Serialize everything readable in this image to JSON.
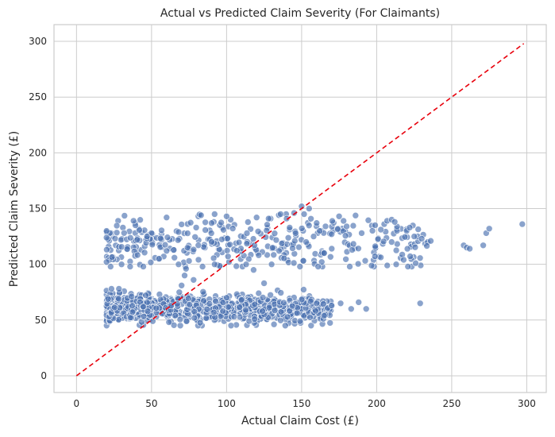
{
  "chart_data": {
    "type": "scatter",
    "title": "Actual vs Predicted Claim Severity (For Claimants)",
    "xlabel": "Actual Claim Cost (£)",
    "ylabel": "Predicted Claim Severity (£)",
    "xlim": [
      -15,
      313
    ],
    "ylim": [
      -15,
      315
    ],
    "xticks": [
      0,
      50,
      100,
      150,
      200,
      250,
      300
    ],
    "yticks": [
      0,
      50,
      100,
      150,
      200,
      250,
      300
    ],
    "grid": true,
    "legend": "none",
    "point_color": "#4c72b0",
    "reference_line": {
      "x": [
        0,
        298
      ],
      "y": [
        0,
        298
      ],
      "style": "dashed",
      "color": "#e8000b"
    },
    "clusters": [
      {
        "name_note": "",
        "x_range": [
          20,
          235
        ],
        "y_center": 60,
        "y_spread": 6,
        "count": 900,
        "x_mode": "dense_low"
      },
      {
        "name_note": "",
        "x_range": [
          20,
          235
        ],
        "y_center": 118,
        "y_spread": 12,
        "count": 340,
        "x_mode": "uniform"
      }
    ],
    "points": [
      [
        20,
        130
      ],
      [
        20,
        102
      ],
      [
        20,
        124
      ],
      [
        30,
        100
      ],
      [
        38,
        139
      ],
      [
        47,
        125
      ],
      [
        60,
        142
      ],
      [
        68,
        129
      ],
      [
        83,
        144
      ],
      [
        90,
        137
      ],
      [
        92,
        145
      ],
      [
        100,
        143
      ],
      [
        120,
        142
      ],
      [
        128,
        141
      ],
      [
        140,
        141
      ],
      [
        145,
        146
      ],
      [
        150,
        152
      ],
      [
        155,
        150
      ],
      [
        160,
        137
      ],
      [
        170,
        127
      ],
      [
        175,
        143
      ],
      [
        180,
        134
      ],
      [
        190,
        128
      ],
      [
        199,
        135
      ],
      [
        205,
        136
      ],
      [
        207,
        139
      ],
      [
        210,
        140
      ],
      [
        212,
        138
      ],
      [
        220,
        130
      ],
      [
        222,
        133
      ],
      [
        225,
        125
      ],
      [
        230,
        123
      ],
      [
        236,
        121
      ],
      [
        210,
        120
      ],
      [
        213,
        100
      ],
      [
        218,
        104
      ],
      [
        226,
        101
      ],
      [
        258,
        117
      ],
      [
        260,
        115
      ],
      [
        262,
        114
      ],
      [
        271,
        117
      ],
      [
        273,
        128
      ],
      [
        275,
        132
      ],
      [
        297,
        136
      ],
      [
        229,
        65
      ],
      [
        188,
        66
      ],
      [
        193,
        60
      ],
      [
        149,
        49
      ],
      [
        156,
        67
      ],
      [
        160,
        65
      ],
      [
        170,
        63
      ],
      [
        176,
        65
      ],
      [
        183,
        60
      ],
      [
        165,
        54
      ],
      [
        73,
        96
      ],
      [
        75,
        103
      ],
      [
        72,
        90
      ],
      [
        60,
        112
      ],
      [
        55,
        105
      ],
      [
        68,
        100
      ],
      [
        100,
        70
      ],
      [
        110,
        68
      ],
      [
        118,
        95
      ],
      [
        125,
        83
      ],
      [
        113,
        100
      ],
      [
        92,
        100
      ],
      [
        84,
        98
      ],
      [
        78,
        86
      ],
      [
        70,
        81
      ],
      [
        146,
        128
      ],
      [
        142,
        133
      ],
      [
        135,
        112
      ],
      [
        130,
        100
      ],
      [
        153,
        120
      ],
      [
        158,
        125
      ],
      [
        162,
        130
      ],
      [
        165,
        110
      ]
    ]
  }
}
